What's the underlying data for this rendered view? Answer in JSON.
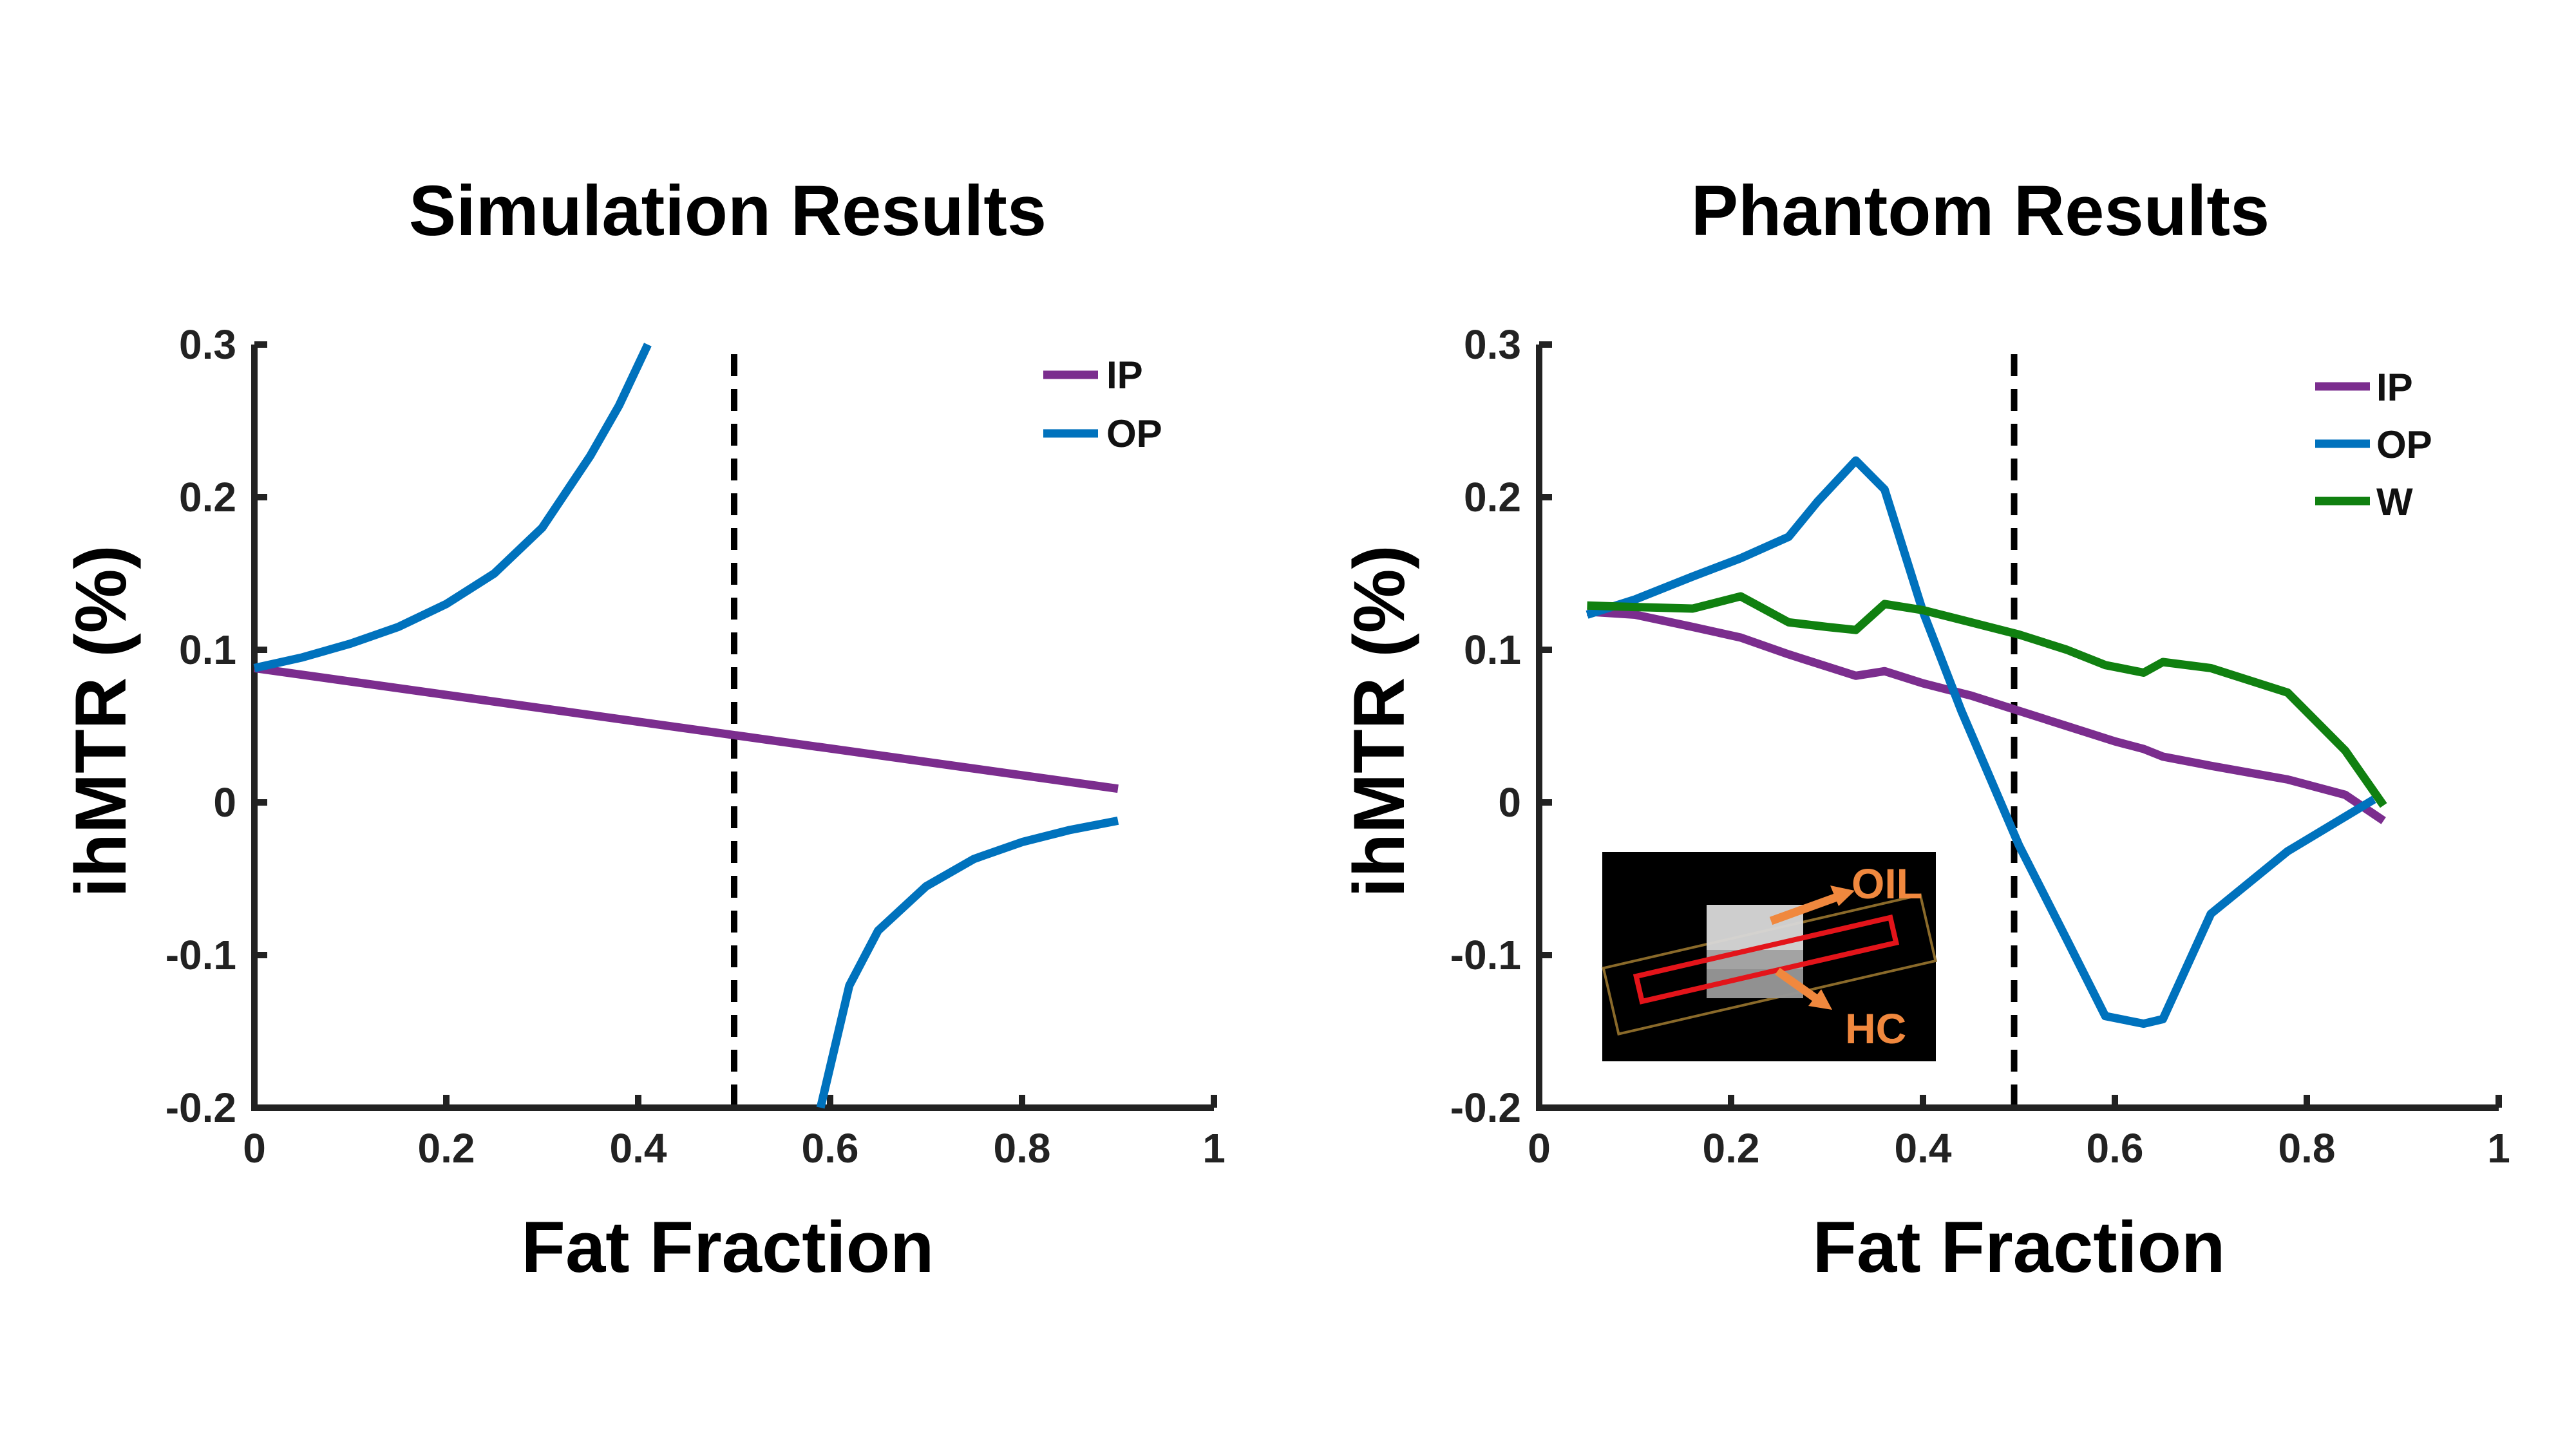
{
  "chart_data": [
    {
      "type": "line",
      "title": "Simulation Results",
      "xlabel": "Fat Fraction",
      "ylabel": "ihMTR (%)",
      "xlim": [
        0,
        1
      ],
      "ylim": [
        -0.2,
        0.3
      ],
      "xticks": [
        "0",
        "0.2",
        "0.4",
        "0.6",
        "0.8",
        "1"
      ],
      "yticks": [
        "-0.2",
        "-0.1",
        "0",
        "0.1",
        "0.2",
        "0.3"
      ],
      "grid": false,
      "legend_position": "top-right",
      "reference_line": {
        "x": 0.5,
        "style": "dashed"
      },
      "series": [
        {
          "name": "IP",
          "color": "#7B2D8E",
          "x": [
            0,
            0.9
          ],
          "y": [
            0.088,
            0.009
          ]
        },
        {
          "name": "OP",
          "color": "#0072BD",
          "segments": [
            {
              "x": [
                0,
                0.05,
                0.1,
                0.15,
                0.2,
                0.25,
                0.3,
                0.35,
                0.38,
                0.41
              ],
              "y": [
                0.088,
                0.095,
                0.104,
                0.115,
                0.13,
                0.15,
                0.18,
                0.227,
                0.26,
                0.3
              ]
            },
            {
              "x": [
                0.59,
                0.62,
                0.65,
                0.7,
                0.75,
                0.8,
                0.85,
                0.9
              ],
              "y": [
                -0.2,
                -0.12,
                -0.084,
                -0.055,
                -0.037,
                -0.026,
                -0.018,
                -0.012
              ]
            }
          ]
        }
      ]
    },
    {
      "type": "line",
      "title": "Phantom Results",
      "xlabel": "Fat Fraction",
      "ylabel": "ihMTR (%)",
      "xlim": [
        0,
        1
      ],
      "ylim": [
        -0.2,
        0.3
      ],
      "xticks": [
        "0",
        "0.2",
        "0.4",
        "0.6",
        "0.8",
        "1"
      ],
      "yticks": [
        "-0.2",
        "-0.1",
        "0",
        "0.1",
        "0.2",
        "0.3"
      ],
      "grid": false,
      "legend_position": "top-right",
      "reference_line": {
        "x": 0.495,
        "style": "dashed"
      },
      "series": [
        {
          "name": "IP",
          "color": "#7B2D8E",
          "x": [
            0.05,
            0.1,
            0.16,
            0.21,
            0.26,
            0.3,
            0.33,
            0.36,
            0.4,
            0.45,
            0.5,
            0.55,
            0.6,
            0.63,
            0.65,
            0.7,
            0.78,
            0.84,
            0.88
          ],
          "y": [
            0.125,
            0.123,
            0.115,
            0.108,
            0.097,
            0.089,
            0.083,
            0.086,
            0.078,
            0.07,
            0.06,
            0.05,
            0.04,
            0.035,
            0.03,
            0.024,
            0.015,
            0.005,
            -0.012
          ]
        },
        {
          "name": "OP",
          "color": "#0072BD",
          "x": [
            0.05,
            0.1,
            0.16,
            0.21,
            0.26,
            0.29,
            0.33,
            0.36,
            0.4,
            0.44,
            0.5,
            0.55,
            0.59,
            0.63,
            0.65,
            0.7,
            0.78,
            0.87
          ],
          "y": [
            0.123,
            0.133,
            0.148,
            0.16,
            0.174,
            0.197,
            0.224,
            0.205,
            0.125,
            0.06,
            -0.028,
            -0.09,
            -0.14,
            -0.145,
            -0.142,
            -0.073,
            -0.032,
            0.002
          ]
        },
        {
          "name": "W",
          "color": "#108010",
          "x": [
            0.05,
            0.1,
            0.16,
            0.21,
            0.26,
            0.3,
            0.33,
            0.36,
            0.4,
            0.45,
            0.5,
            0.55,
            0.59,
            0.63,
            0.65,
            0.7,
            0.78,
            0.84,
            0.88
          ],
          "y": [
            0.129,
            0.128,
            0.127,
            0.135,
            0.118,
            0.115,
            0.113,
            0.13,
            0.126,
            0.118,
            0.11,
            0.1,
            0.09,
            0.085,
            0.092,
            0.088,
            0.072,
            0.034,
            -0.002
          ]
        }
      ],
      "inset": {
        "labels": [
          "OIL",
          "HC"
        ]
      }
    }
  ]
}
